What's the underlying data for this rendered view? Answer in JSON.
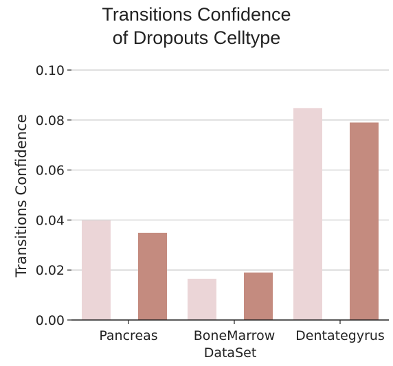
{
  "chart_data": {
    "type": "bar",
    "title": [
      "Transitions Confidence",
      "of Dropouts Celltype"
    ],
    "xlabel": "DataSet",
    "ylabel": "Transitions Confidence",
    "categories": [
      "Pancreas",
      "BoneMarrow",
      "Dentategyrus"
    ],
    "series": [
      {
        "values": [
          0.0398,
          0.0165,
          0.0848
        ],
        "color": "#ebd5d7"
      },
      {
        "values": [
          0.0349,
          0.019,
          0.079
        ],
        "color": "#c48b7f"
      }
    ],
    "ylim": [
      0,
      0.1
    ],
    "yticks": [
      "0.00",
      "0.02",
      "0.04",
      "0.06",
      "0.08",
      "0.10"
    ],
    "grid": "horizontal",
    "legend": "none"
  }
}
